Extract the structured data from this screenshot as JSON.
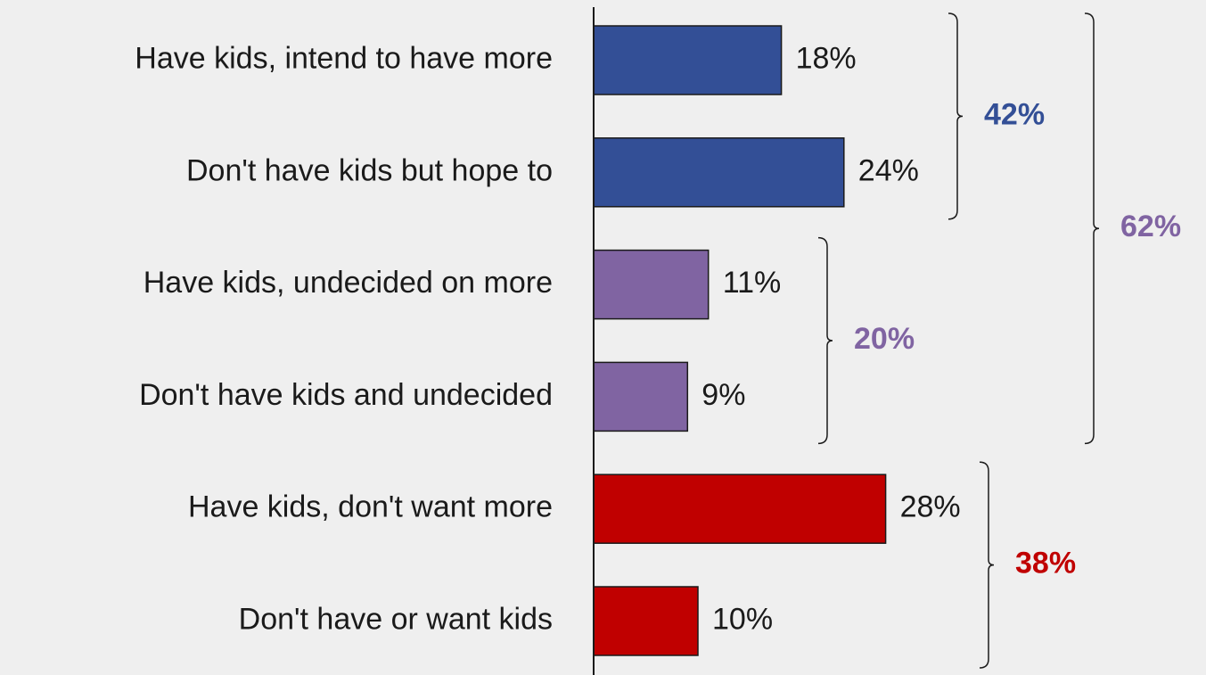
{
  "chart_data": {
    "type": "bar",
    "orientation": "horizontal",
    "categories": [
      "Have kids, intend to have more",
      "Don't have kids but hope to",
      "Have kids, undecided on more",
      "Don't have kids and undecided",
      "Have kids, don't want more",
      "Don't have or want kids"
    ],
    "values": [
      18,
      24,
      11,
      9,
      28,
      10
    ],
    "value_labels": [
      "18%",
      "24%",
      "11%",
      "9%",
      "28%",
      "10%"
    ],
    "bar_colors": [
      "#334f96",
      "#334f96",
      "#8064a2",
      "#8064a2",
      "#c00000",
      "#c00000"
    ],
    "groups": [
      {
        "label": "42%",
        "value": 42,
        "from": 0,
        "to": 1,
        "color": "#334f96"
      },
      {
        "label": "20%",
        "value": 20,
        "from": 2,
        "to": 3,
        "color": "#8064a2"
      },
      {
        "label": "38%",
        "value": 38,
        "from": 4,
        "to": 5,
        "color": "#c00000"
      },
      {
        "label": "62%",
        "value": 62,
        "from": 0,
        "to": 3,
        "color": "#8064a2"
      }
    ],
    "title": "",
    "xlabel": "",
    "ylabel": "",
    "grid": false,
    "legend": "none"
  }
}
